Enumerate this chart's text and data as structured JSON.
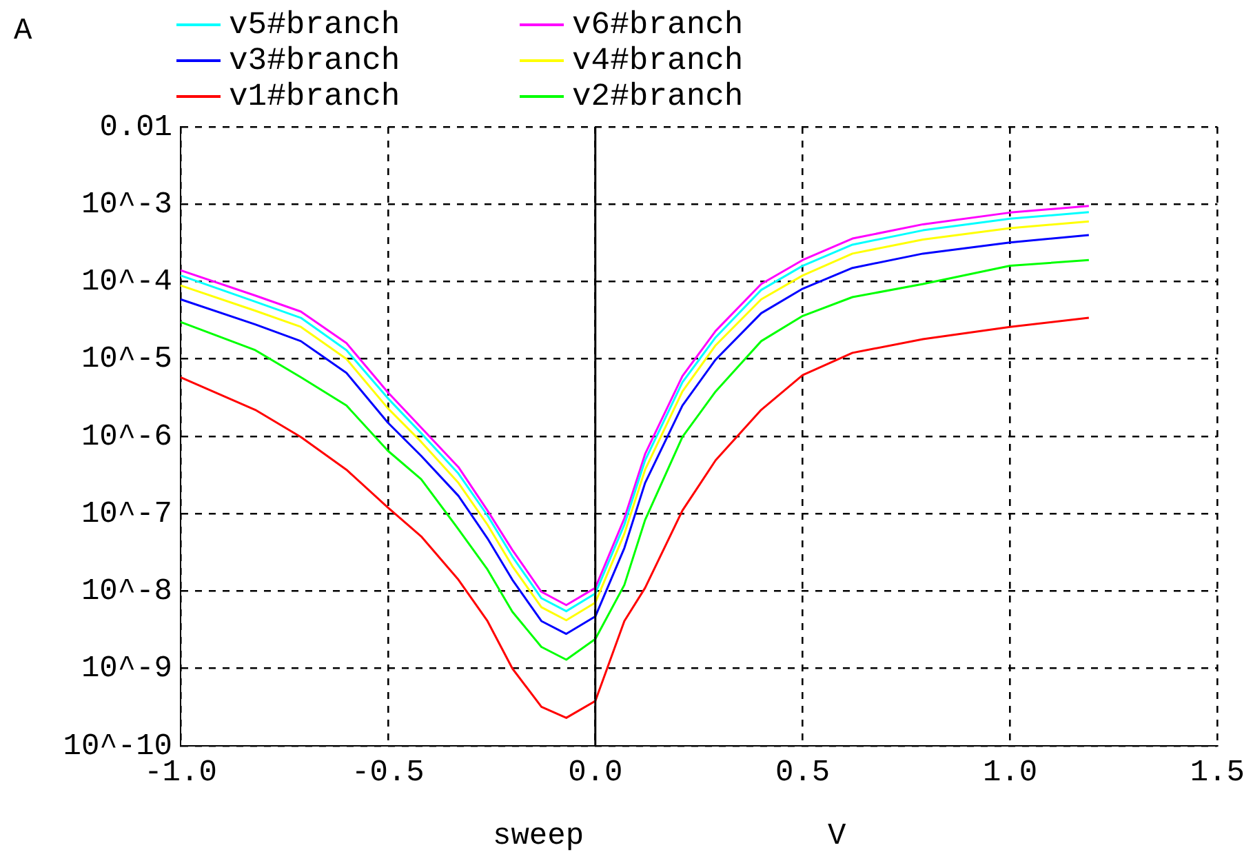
{
  "chart_data": {
    "type": "line",
    "ylabel": "A",
    "xlabel": "sweep",
    "annotations": [
      "V"
    ],
    "x": [
      -1,
      -0.82,
      -0.71,
      -0.6,
      -0.5,
      -0.42,
      -0.33,
      -0.26,
      -0.2,
      -0.13,
      -0.07,
      0,
      0.07,
      0.12,
      0.21,
      0.29,
      0.4,
      0.5,
      0.62,
      0.79,
      1.0,
      1.19
    ],
    "series": [
      {
        "name": "v5#branch",
        "color": "#00ffff",
        "values": [
          0.00012,
          5.5e-05,
          3.4e-05,
          1.3e-05,
          3.1e-06,
          1.1e-06,
          3.3e-07,
          9.5e-08,
          2.8e-08,
          8.1e-09,
          5.5e-09,
          9.3e-09,
          7.2e-08,
          4.9e-07,
          5e-06,
          1.9e-05,
          7.8e-05,
          0.00016,
          0.0003,
          0.00046,
          0.00065,
          0.00079
        ]
      },
      {
        "name": "v6#branch",
        "color": "#ff00ff",
        "values": [
          0.00014,
          6.6e-05,
          4.1e-05,
          1.6e-05,
          3.7e-06,
          1.3e-06,
          4e-07,
          1.1e-07,
          3.4e-08,
          9.8e-09,
          6.6e-09,
          1.1e-08,
          8.7e-08,
          5.9e-07,
          6e-06,
          2.3e-05,
          9.3e-05,
          0.00019,
          0.00036,
          0.00055,
          0.00078,
          0.00095
        ]
      },
      {
        "name": "v3#branch",
        "color": "#0000ff",
        "values": [
          5.9e-05,
          2.8e-05,
          1.7e-05,
          6.6e-06,
          1.5e-06,
          5.6e-07,
          1.7e-07,
          4.8e-08,
          1.4e-08,
          4.1e-09,
          2.8e-09,
          4.7e-09,
          3.6e-08,
          2.5e-07,
          2.5e-06,
          9.8e-06,
          3.9e-05,
          8.1e-05,
          0.00015,
          0.00023,
          0.00032,
          0.0004
        ]
      },
      {
        "name": "v4#branch",
        "color": "#ffff00",
        "values": [
          8.9e-05,
          4.2e-05,
          2.6e-05,
          1e-05,
          2.3e-06,
          8.5e-07,
          2.5e-07,
          7.2e-08,
          2.1e-08,
          6.2e-09,
          4.2e-09,
          7.1e-09,
          5.5e-08,
          3.7e-07,
          3.8e-06,
          1.5e-05,
          5.9e-05,
          0.00012,
          0.00023,
          0.00035,
          0.00049,
          0.0006
        ]
      },
      {
        "name": "v1#branch",
        "color": "#ff0000",
        "values": [
          5.8e-06,
          2.2e-06,
          9.8e-07,
          3.7e-07,
          1.2e-07,
          5.1e-08,
          1.4e-08,
          4.1e-09,
          1e-09,
          3.2e-10,
          2.3e-10,
          3.8e-10,
          4.1e-09,
          1.1e-08,
          1.1e-07,
          4.9e-07,
          2.2e-06,
          6.2e-06,
          1.2e-05,
          1.8e-05,
          2.6e-05,
          3.4e-05
        ]
      },
      {
        "name": "v2#branch",
        "color": "#00ff00",
        "values": [
          3e-05,
          1.3e-05,
          5.8e-06,
          2.5e-06,
          6.5e-07,
          2.8e-07,
          6.3e-08,
          1.9e-08,
          5.4e-09,
          1.9e-09,
          1.3e-09,
          2.4e-09,
          1.2e-08,
          8.3e-08,
          9.8e-07,
          3.8e-06,
          1.7e-05,
          3.6e-05,
          6.3e-05,
          9.3e-05,
          0.00016,
          0.00019
        ]
      }
    ],
    "xlim": [
      -1,
      1.5
    ],
    "xticks": [
      {
        "value": -1,
        "label": "-1.0"
      },
      -0.5,
      {
        "value": 0,
        "label": "0.0"
      },
      0.5,
      {
        "value": 1,
        "label": "1.0"
      },
      1.5
    ],
    "ylim": [
      1e-10,
      0.01
    ],
    "yticks": [
      {
        "value": 1e-10,
        "label": "10^-10"
      },
      {
        "value": 1e-09,
        "label": "10^-9"
      },
      {
        "value": 1e-08,
        "label": "10^-8"
      },
      {
        "value": 1e-07,
        "label": "10^-7"
      },
      {
        "value": 1e-06,
        "label": "10^-6"
      },
      {
        "value": 1e-05,
        "label": "10^-5"
      },
      {
        "value": 0.0001,
        "label": "10^-4"
      },
      {
        "value": 0.001,
        "label": "10^-3"
      },
      0.01
    ],
    "log": "y",
    "grid": true,
    "legend": "top",
    "ref_lines": [
      {
        "axis": "x",
        "value": 0,
        "color": "#000000"
      }
    ]
  }
}
